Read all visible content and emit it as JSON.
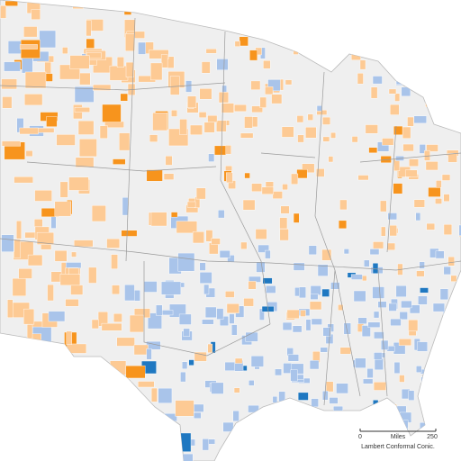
{
  "scale_bar": {
    "start_label": "0",
    "unit": "Miles",
    "end_label": "250",
    "projection": "Lambert Conformal Conic."
  }
}
